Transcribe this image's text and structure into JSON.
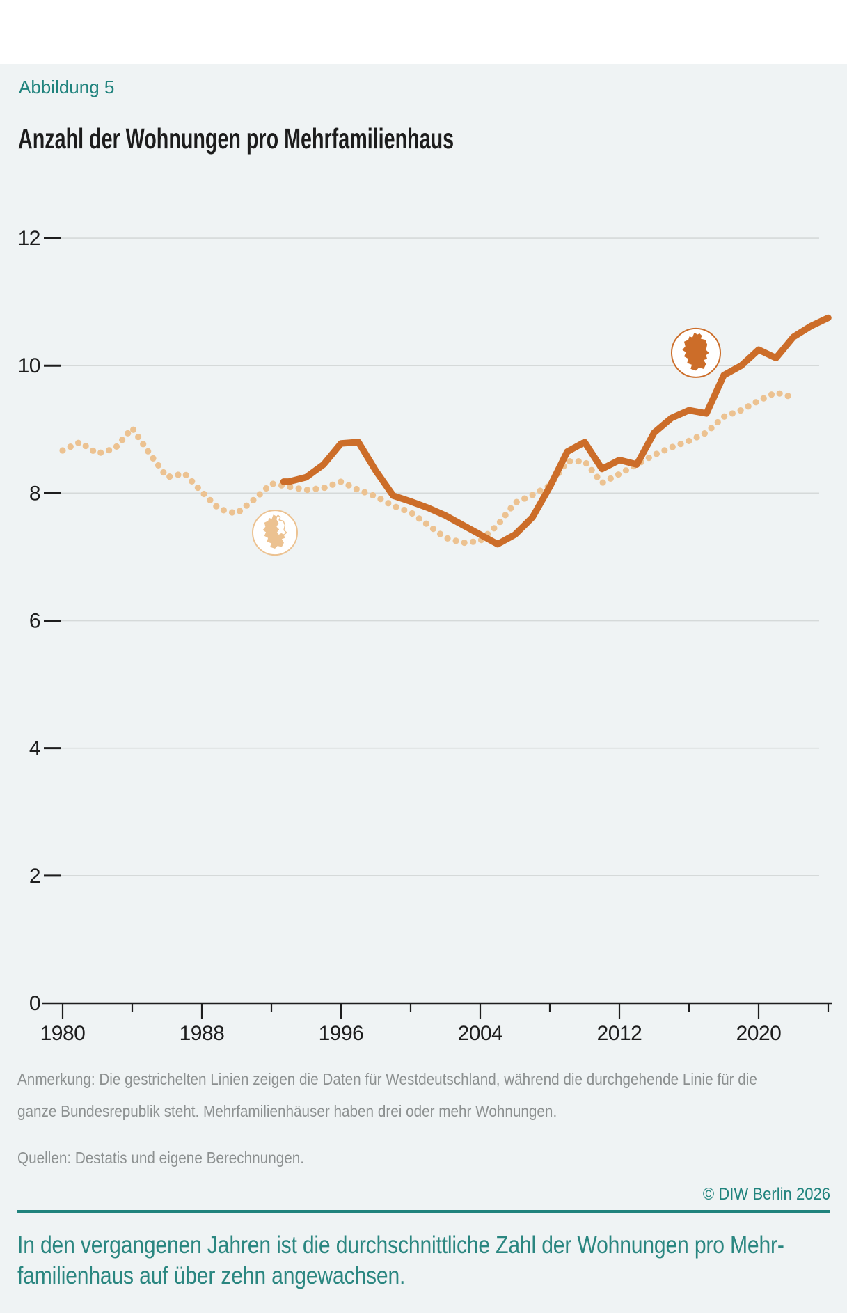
{
  "figure_label": "Abbildung 5",
  "title": "Anzahl der Wohnungen pro Mehrfamilienhaus",
  "notes": {
    "line1": "Anmerkung: Die gestrichelten Linien zeigen die Daten für Westdeutschland, während die durchgehende Linie für die",
    "line2": "ganze Bundesrepublik steht. Mehrfamilienhäuser haben drei oder mehr Wohnungen.",
    "sources": "Quellen: Destatis und eigene Berechnungen."
  },
  "copyright": "© DIW Berlin 2026",
  "summary": {
    "line1": "In den vergangenen Jahren ist die durchschnittliche Zahl der Wohnungen pro Mehr-",
    "line2": "familienhaus auf über zehn angewachsen."
  },
  "colors": {
    "teal": "#20837d",
    "orange_solid": "#cc6d29",
    "tan_dotted": "#ecc291",
    "panel_background": "#eff3f4",
    "gridline": "#d5d9d9",
    "axis_dark": "#1d1d1d",
    "note_gray": "#8c9090",
    "title_dark": "#1c1c1c",
    "badge_fill": "#ffffff"
  },
  "chart_data": {
    "type": "line",
    "title": "Anzahl der Wohnungen pro Mehrfamilienhaus",
    "xlabel": "",
    "ylabel": "",
    "ylim": [
      0,
      12
    ],
    "yticks": [
      0,
      2,
      4,
      6,
      8,
      10,
      12
    ],
    "xlim": [
      1978.8,
      2025.2
    ],
    "xticks_major": [
      1980,
      1988,
      1996,
      2004,
      2012,
      2020
    ],
    "xticks_minor": [
      1984,
      1992,
      2000,
      2008,
      2016,
      2024
    ],
    "grid": "horizontal",
    "legend_position": "none",
    "series": [
      {
        "name": "Westdeutschland",
        "style": "dotted",
        "color": "#ecc291",
        "points": [
          [
            1980,
            8.67
          ],
          [
            1981,
            8.8
          ],
          [
            1982,
            8.62
          ],
          [
            1983,
            8.7
          ],
          [
            1984,
            9.02
          ],
          [
            1985,
            8.62
          ],
          [
            1986,
            8.25
          ],
          [
            1987,
            8.31
          ],
          [
            1988,
            8.02
          ],
          [
            1989,
            7.75
          ],
          [
            1990,
            7.68
          ],
          [
            1991,
            7.9
          ],
          [
            1992,
            8.15
          ],
          [
            1993,
            8.1
          ],
          [
            1994,
            8.05
          ],
          [
            1995,
            8.08
          ],
          [
            1996,
            8.18
          ],
          [
            1997,
            8.05
          ],
          [
            1998,
            7.95
          ],
          [
            1999,
            7.8
          ],
          [
            2000,
            7.7
          ],
          [
            2001,
            7.5
          ],
          [
            2002,
            7.3
          ],
          [
            2003,
            7.22
          ],
          [
            2004,
            7.25
          ],
          [
            2005,
            7.5
          ],
          [
            2006,
            7.85
          ],
          [
            2007,
            7.97
          ],
          [
            2008,
            8.12
          ],
          [
            2009,
            8.5
          ],
          [
            2010,
            8.5
          ],
          [
            2011,
            8.16
          ],
          [
            2012,
            8.3
          ],
          [
            2013,
            8.45
          ],
          [
            2014,
            8.6
          ],
          [
            2015,
            8.72
          ],
          [
            2016,
            8.82
          ],
          [
            2017,
            8.95
          ],
          [
            2018,
            9.2
          ],
          [
            2019,
            9.3
          ],
          [
            2020,
            9.45
          ],
          [
            2021,
            9.58
          ],
          [
            2022,
            9.5
          ]
        ]
      },
      {
        "name": "Ganze Bundesrepublik",
        "style": "solid",
        "color": "#cc6d29",
        "points": [
          [
            1992.7,
            8.18
          ],
          [
            1993,
            8.18
          ],
          [
            1994,
            8.25
          ],
          [
            1995,
            8.45
          ],
          [
            1996,
            8.78
          ],
          [
            1997,
            8.8
          ],
          [
            1998,
            8.35
          ],
          [
            1999,
            7.96
          ],
          [
            2000,
            7.87
          ],
          [
            2001,
            7.77
          ],
          [
            2002,
            7.65
          ],
          [
            2003,
            7.5
          ],
          [
            2004,
            7.35
          ],
          [
            2005,
            7.2
          ],
          [
            2006,
            7.35
          ],
          [
            2007,
            7.62
          ],
          [
            2008,
            8.1
          ],
          [
            2009,
            8.65
          ],
          [
            2010,
            8.8
          ],
          [
            2011,
            8.38
          ],
          [
            2012,
            8.52
          ],
          [
            2013,
            8.45
          ],
          [
            2014,
            8.95
          ],
          [
            2015,
            9.18
          ],
          [
            2016,
            9.3
          ],
          [
            2017,
            9.25
          ],
          [
            2018,
            9.85
          ],
          [
            2019,
            10.0
          ],
          [
            2020,
            10.25
          ],
          [
            2021,
            10.12
          ],
          [
            2022,
            10.45
          ],
          [
            2023,
            10.62
          ],
          [
            2024,
            10.75
          ]
        ]
      }
    ],
    "annotations": [
      {
        "icon": "west-germany-map",
        "series": "Westdeutschland",
        "year": 1992.2,
        "value": 7.38
      },
      {
        "icon": "germany-map",
        "series": "Ganze Bundesrepublik",
        "year": 2016.4,
        "value": 10.2
      }
    ]
  }
}
